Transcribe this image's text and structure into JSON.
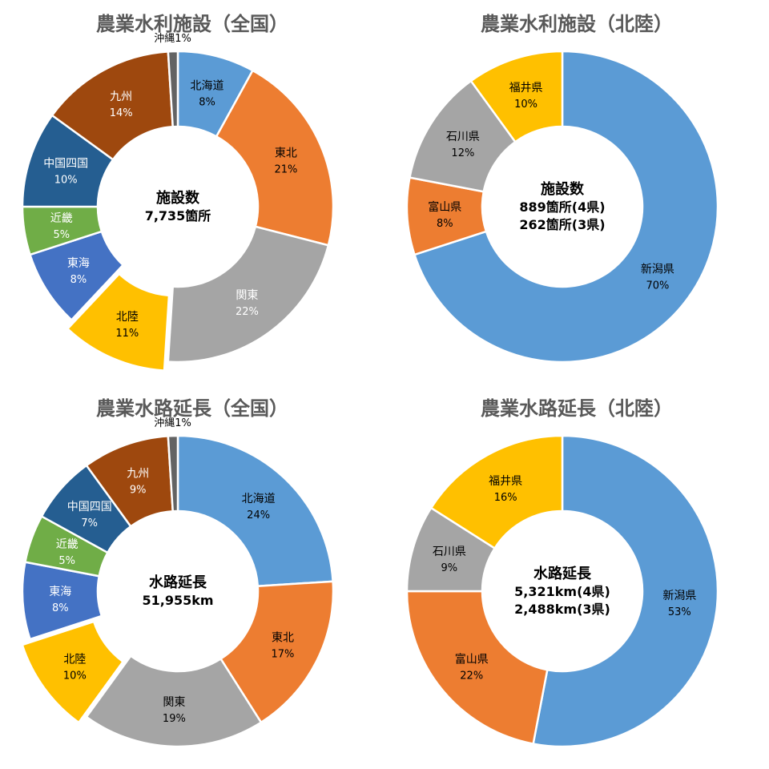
{
  "chart_data": [
    {
      "type": "pie",
      "title": "農業水利施設（全国）",
      "center_text": [
        "施設数",
        "7,735箇所"
      ],
      "slices": [
        {
          "label": "北海道",
          "value": 8,
          "value_label": "8%",
          "color": "#5B9BD5",
          "text_color": "#000000"
        },
        {
          "label": "東北",
          "value": 21,
          "value_label": "21%",
          "color": "#ED7D31",
          "text_color": "#000000"
        },
        {
          "label": "関東",
          "value": 22,
          "value_label": "22%",
          "color": "#A5A5A5",
          "text_color": "#ffffff"
        },
        {
          "label": "北陸",
          "value": 11,
          "value_label": "11%",
          "color": "#FFC000",
          "text_color": "#000000",
          "exploded": true
        },
        {
          "label": "東海",
          "value": 8,
          "value_label": "8%",
          "color": "#4472C4",
          "text_color": "#ffffff"
        },
        {
          "label": "近畿",
          "value": 5,
          "value_label": "5%",
          "color": "#70AD47",
          "text_color": "#ffffff"
        },
        {
          "label": "中国四国",
          "value": 10,
          "value_label": "10%",
          "color": "#255E91",
          "text_color": "#ffffff"
        },
        {
          "label": "九州",
          "value": 14,
          "value_label": "14%",
          "color": "#9E480E",
          "text_color": "#ffffff"
        },
        {
          "label": "沖縄",
          "value": 1,
          "value_label": "沖縄1%",
          "color": "#636363",
          "text_color": "#000000",
          "outside": true
        }
      ]
    },
    {
      "type": "pie",
      "title": "農業水利施設（北陸）",
      "center_text": [
        "施設数",
        "889箇所(4県)",
        "262箇所(3県)"
      ],
      "slices": [
        {
          "label": "新潟県",
          "value": 70,
          "value_label": "70%",
          "color": "#5B9BD5",
          "text_color": "#000000"
        },
        {
          "label": "富山県",
          "value": 8,
          "value_label": "8%",
          "color": "#ED7D31",
          "text_color": "#000000"
        },
        {
          "label": "石川県",
          "value": 12,
          "value_label": "12%",
          "color": "#A5A5A5",
          "text_color": "#000000"
        },
        {
          "label": "福井県",
          "value": 10,
          "value_label": "10%",
          "color": "#FFC000",
          "text_color": "#000000"
        }
      ]
    },
    {
      "type": "pie",
      "title": "農業水路延長（全国）",
      "center_text": [
        "水路延長",
        "51,955km"
      ],
      "slices": [
        {
          "label": "北海道",
          "value": 24,
          "value_label": "24%",
          "color": "#5B9BD5",
          "text_color": "#000000"
        },
        {
          "label": "東北",
          "value": 17,
          "value_label": "17%",
          "color": "#ED7D31",
          "text_color": "#000000"
        },
        {
          "label": "関東",
          "value": 19,
          "value_label": "19%",
          "color": "#A5A5A5",
          "text_color": "#000000"
        },
        {
          "label": "北陸",
          "value": 10,
          "value_label": "10%",
          "color": "#FFC000",
          "text_color": "#000000",
          "exploded": true
        },
        {
          "label": "東海",
          "value": 8,
          "value_label": "8%",
          "color": "#4472C4",
          "text_color": "#ffffff"
        },
        {
          "label": "近畿",
          "value": 5,
          "value_label": "5%",
          "color": "#70AD47",
          "text_color": "#ffffff"
        },
        {
          "label": "中国四国",
          "value": 7,
          "value_label": "7%",
          "color": "#255E91",
          "text_color": "#ffffff"
        },
        {
          "label": "九州",
          "value": 9,
          "value_label": "9%",
          "color": "#9E480E",
          "text_color": "#ffffff"
        },
        {
          "label": "沖縄",
          "value": 1,
          "value_label": "沖縄1%",
          "color": "#636363",
          "text_color": "#000000",
          "outside": true
        }
      ]
    },
    {
      "type": "pie",
      "title": "農業水路延長（北陸）",
      "center_text": [
        "水路延長",
        "5,321km(4県)",
        "2,488km(3県)"
      ],
      "slices": [
        {
          "label": "新潟県",
          "value": 53,
          "value_label": "53%",
          "color": "#5B9BD5",
          "text_color": "#000000"
        },
        {
          "label": "富山県",
          "value": 22,
          "value_label": "22%",
          "color": "#ED7D31",
          "text_color": "#000000"
        },
        {
          "label": "石川県",
          "value": 9,
          "value_label": "9%",
          "color": "#A5A5A5",
          "text_color": "#000000"
        },
        {
          "label": "福井県",
          "value": 16,
          "value_label": "16%",
          "color": "#FFC000",
          "text_color": "#000000"
        }
      ]
    }
  ]
}
